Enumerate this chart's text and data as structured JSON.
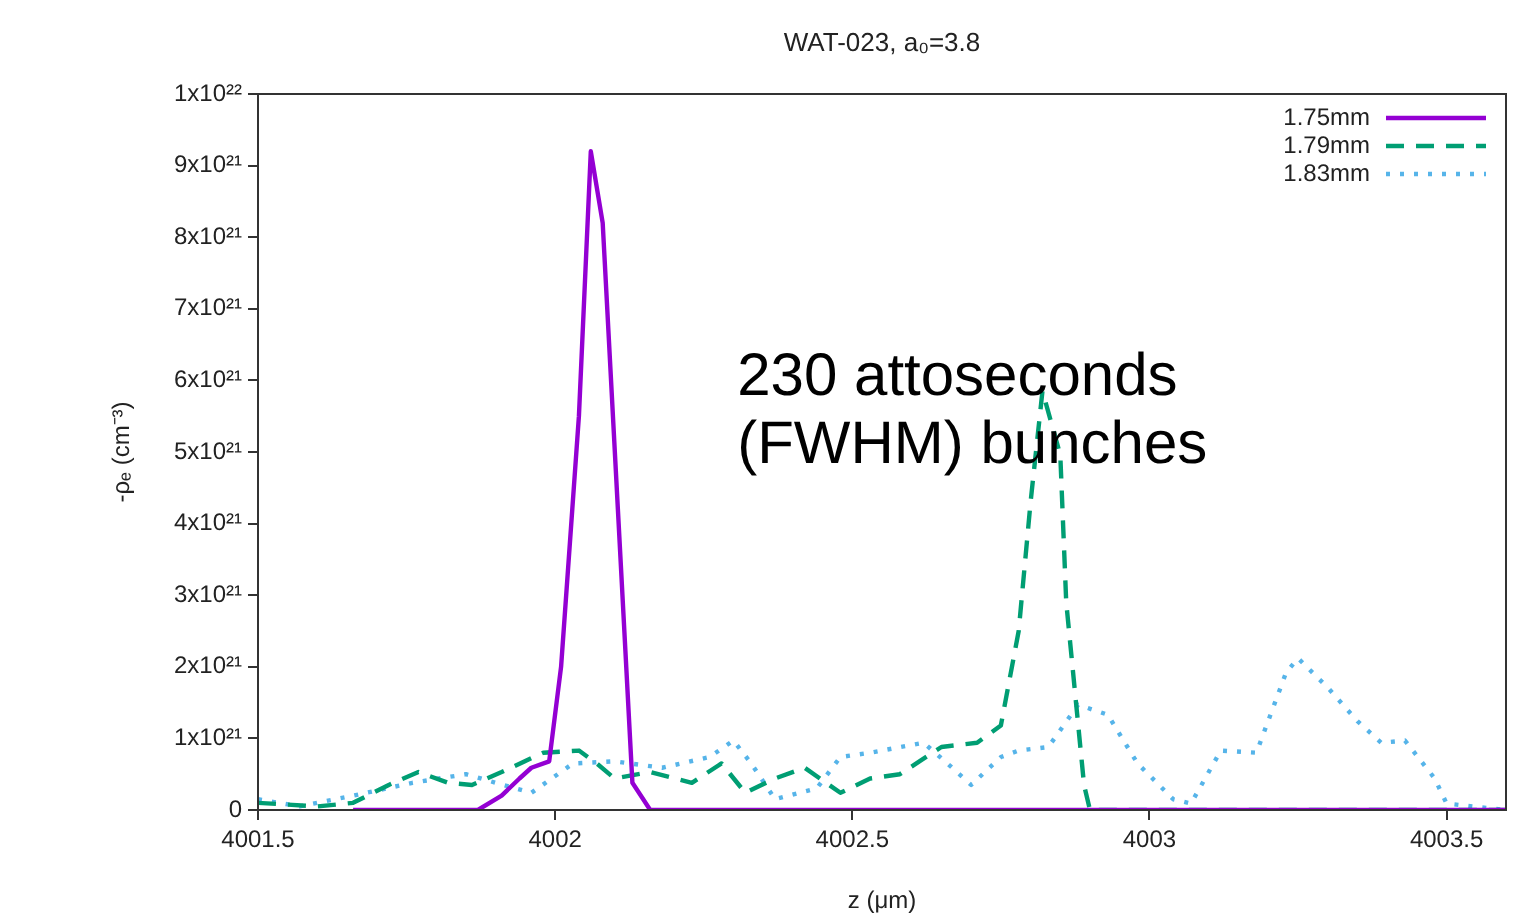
{
  "chart_data": {
    "type": "line",
    "title": "WAT-023, a₀=3.8",
    "xlabel": "z (μm)",
    "ylabel": "-ρₑ (cm⁻³)",
    "xlim": [
      4001.5,
      4003.6
    ],
    "xticks": [
      4001.5,
      4002,
      4002.5,
      4003,
      4003.5
    ],
    "ylim": [
      0,
      1e+22
    ],
    "yticks": [
      0,
      {
        "value": 1e+21,
        "label": "1x10²¹"
      },
      {
        "value": 2e+21,
        "label": "2x10²¹"
      },
      {
        "value": 3e+21,
        "label": "3x10²¹"
      },
      {
        "value": 4e+21,
        "label": "4x10²¹"
      },
      {
        "value": 5e+21,
        "label": "5x10²¹"
      },
      {
        "value": 6e+21,
        "label": "6x10²¹"
      },
      {
        "value": 7e+21,
        "label": "7x10²¹"
      },
      {
        "value": 8e+21,
        "label": "8x10²¹"
      },
      {
        "value": 9e+21,
        "label": "9x10²¹"
      },
      {
        "value": 1e+22,
        "label": "1x10²²"
      }
    ],
    "grid": false,
    "legend": "top right",
    "marker": "none",
    "annotations": [
      "230 attoseconds\n(FWHM) bunches"
    ],
    "series": [
      {
        "name": "1.75mm",
        "color": "#9400d3",
        "line_style": "solid",
        "x": [
          4001.66,
          4001.87,
          4001.91,
          4001.94,
          4001.96,
          4001.99,
          4002.01,
          4002.04,
          4002.06,
          4002.08,
          4002.13,
          4002.16,
          4003.6
        ],
        "values": [
          0,
          0,
          2e+20,
          4.4e+20,
          5.9e+20,
          6.8e+20,
          2e+21,
          5.5e+21,
          9.2e+21,
          8.2e+21,
          3.8e+20,
          0,
          0
        ]
      },
      {
        "name": "1.79mm",
        "color": "#009e73",
        "line_style": "dashed",
        "x": [
          4001.5,
          4001.6,
          4001.66,
          4001.72,
          4001.77,
          4001.82,
          4001.86,
          4001.91,
          4001.98,
          4002.04,
          4002.07,
          4002.1,
          4002.16,
          4002.23,
          4002.28,
          4002.32,
          4002.37,
          4002.42,
          4002.48,
          4002.53,
          4002.58,
          4002.65,
          4002.71,
          4002.75,
          4002.78,
          4002.8,
          4002.82,
          4002.85,
          4002.86,
          4002.89,
          4002.9,
          4003.6
        ],
        "values": [
          1e+20,
          5e+19,
          1e+20,
          3.5e+20,
          5.3e+20,
          3.8e+20,
          3.5e+20,
          5.3e+20,
          8e+20,
          8.3e+20,
          6.5e+20,
          4.4e+20,
          5.3e+20,
          3.8e+20,
          6.5e+20,
          2.4e+20,
          4.4e+20,
          5.9e+20,
          2.4e+20,
          4.4e+20,
          5e+20,
          8.8e+20,
          9.4e+20,
          1.18e+21,
          2.5e+21,
          4.3e+21,
          5.85e+21,
          4.96e+21,
          2.9e+21,
          3.5e+20,
          0,
          0
        ]
      },
      {
        "name": "1.83mm",
        "color": "#56b4e9",
        "line_style": "dotted",
        "x": [
          4001.5,
          4001.57,
          4001.66,
          4001.76,
          4001.85,
          4001.9,
          4001.96,
          4002.03,
          4002.1,
          4002.18,
          4002.26,
          4002.3,
          4002.33,
          4002.37,
          4002.44,
          4002.48,
          4002.53,
          4002.62,
          4002.66,
          4002.7,
          4002.75,
          4002.78,
          4002.83,
          4002.88,
          4002.93,
          4002.98,
          4003.04,
          4003.07,
          4003.12,
          4003.18,
          4003.23,
          4003.25,
          4003.3,
          4003.35,
          4003.39,
          4003.43,
          4003.48,
          4003.5,
          4003.6
        ],
        "values": [
          1.5e+20,
          5e+19,
          2e+20,
          3.8e+20,
          5e+20,
          3.8e+20,
          2.4e+20,
          6.5e+20,
          6.8e+20,
          5.9e+20,
          7.4e+20,
          9.7e+20,
          6.5e+20,
          1.5e+20,
          3e+20,
          7.4e+20,
          8e+20,
          9.4e+20,
          6.5e+20,
          3.5e+20,
          7.4e+20,
          8.3e+20,
          8.8e+20,
          1.47e+21,
          1.33e+21,
          6.5e+20,
          1.5e+20,
          9e+19,
          8.3e+20,
          8e+20,
          1.92e+21,
          2.12e+21,
          1.71e+21,
          1.24e+21,
          9.4e+20,
          9.7e+20,
          4.4e+20,
          9e+19,
          0
        ]
      }
    ]
  }
}
